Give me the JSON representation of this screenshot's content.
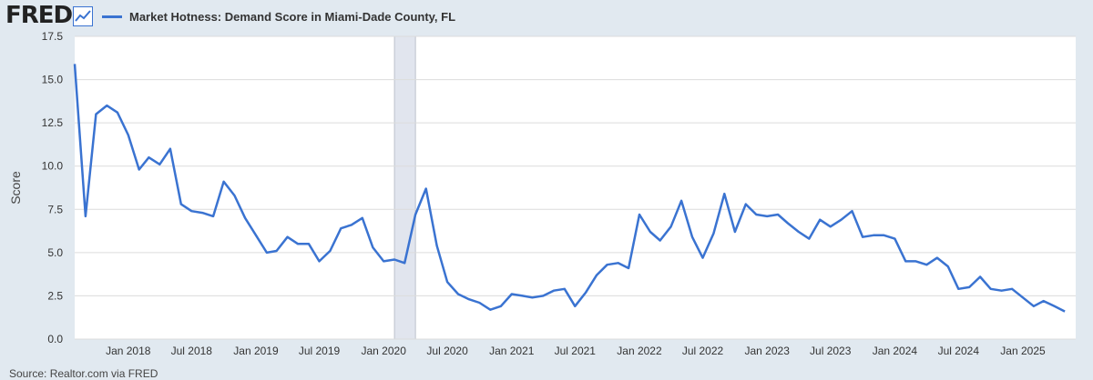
{
  "header": {
    "logo_text": "FRED",
    "logo_icon": "line-chart-icon"
  },
  "footer": {
    "source_text": "Source: Realtor.com via FRED"
  },
  "colors": {
    "series": "#3a73d1",
    "background": "#e1e9f0",
    "plot_background": "#ffffff",
    "recession": "#e1e5ee",
    "gridline": "#dcdcdc"
  },
  "chart_data": {
    "type": "line",
    "title": "",
    "xlabel": "",
    "ylabel": "Score",
    "ylim": [
      0,
      17.5
    ],
    "yticks": [
      "0.0",
      "2.5",
      "5.0",
      "7.5",
      "10.0",
      "12.5",
      "15.0",
      "17.5"
    ],
    "xlim": [
      "2017-08-01",
      "2025-06-01"
    ],
    "xticks": [
      {
        "date": "2018-01-01",
        "label": "Jan 2018"
      },
      {
        "date": "2018-07-01",
        "label": "Jul 2018"
      },
      {
        "date": "2019-01-01",
        "label": "Jan 2019"
      },
      {
        "date": "2019-07-01",
        "label": "Jul 2019"
      },
      {
        "date": "2020-01-01",
        "label": "Jan 2020"
      },
      {
        "date": "2020-07-01",
        "label": "Jul 2020"
      },
      {
        "date": "2021-01-01",
        "label": "Jan 2021"
      },
      {
        "date": "2021-07-01",
        "label": "Jul 2021"
      },
      {
        "date": "2022-01-01",
        "label": "Jan 2022"
      },
      {
        "date": "2022-07-01",
        "label": "Jul 2022"
      },
      {
        "date": "2023-01-01",
        "label": "Jan 2023"
      },
      {
        "date": "2023-07-01",
        "label": "Jul 2023"
      },
      {
        "date": "2024-01-01",
        "label": "Jan 2024"
      },
      {
        "date": "2024-07-01",
        "label": "Jul 2024"
      },
      {
        "date": "2025-01-01",
        "label": "Jan 2025"
      }
    ],
    "grid": true,
    "legend": "top-left",
    "recessions": [
      {
        "start": "2020-02-01",
        "end": "2020-04-01"
      }
    ],
    "series": [
      {
        "name": "Market Hotness: Demand Score in Miami-Dade County, FL",
        "points": [
          [
            "2017-08-01",
            15.9
          ],
          [
            "2017-09-01",
            7.1
          ],
          [
            "2017-10-01",
            13.0
          ],
          [
            "2017-11-01",
            13.5
          ],
          [
            "2017-12-01",
            13.1
          ],
          [
            "2018-01-01",
            11.8
          ],
          [
            "2018-02-01",
            9.8
          ],
          [
            "2018-03-01",
            10.5
          ],
          [
            "2018-04-01",
            10.1
          ],
          [
            "2018-05-01",
            11.0
          ],
          [
            "2018-06-01",
            7.8
          ],
          [
            "2018-07-01",
            7.4
          ],
          [
            "2018-08-01",
            7.3
          ],
          [
            "2018-09-01",
            7.1
          ],
          [
            "2018-10-01",
            9.1
          ],
          [
            "2018-11-01",
            8.3
          ],
          [
            "2018-12-01",
            7.0
          ],
          [
            "2019-01-01",
            6.0
          ],
          [
            "2019-02-01",
            5.0
          ],
          [
            "2019-03-01",
            5.1
          ],
          [
            "2019-04-01",
            5.9
          ],
          [
            "2019-05-01",
            5.5
          ],
          [
            "2019-06-01",
            5.5
          ],
          [
            "2019-07-01",
            4.5
          ],
          [
            "2019-08-01",
            5.1
          ],
          [
            "2019-09-01",
            6.4
          ],
          [
            "2019-10-01",
            6.6
          ],
          [
            "2019-11-01",
            7.0
          ],
          [
            "2019-12-01",
            5.3
          ],
          [
            "2020-01-01",
            4.5
          ],
          [
            "2020-02-01",
            4.6
          ],
          [
            "2020-03-01",
            4.4
          ],
          [
            "2020-04-01",
            7.2
          ],
          [
            "2020-05-01",
            8.7
          ],
          [
            "2020-06-01",
            5.4
          ],
          [
            "2020-07-01",
            3.3
          ],
          [
            "2020-08-01",
            2.6
          ],
          [
            "2020-09-01",
            2.3
          ],
          [
            "2020-10-01",
            2.1
          ],
          [
            "2020-11-01",
            1.7
          ],
          [
            "2020-12-01",
            1.9
          ],
          [
            "2021-01-01",
            2.6
          ],
          [
            "2021-02-01",
            2.5
          ],
          [
            "2021-03-01",
            2.4
          ],
          [
            "2021-04-01",
            2.5
          ],
          [
            "2021-05-01",
            2.8
          ],
          [
            "2021-06-01",
            2.9
          ],
          [
            "2021-07-01",
            1.9
          ],
          [
            "2021-08-01",
            2.7
          ],
          [
            "2021-09-01",
            3.7
          ],
          [
            "2021-10-01",
            4.3
          ],
          [
            "2021-11-01",
            4.4
          ],
          [
            "2021-12-01",
            4.1
          ],
          [
            "2022-01-01",
            7.2
          ],
          [
            "2022-02-01",
            6.2
          ],
          [
            "2022-03-01",
            5.7
          ],
          [
            "2022-04-01",
            6.5
          ],
          [
            "2022-05-01",
            8.0
          ],
          [
            "2022-06-01",
            5.9
          ],
          [
            "2022-07-01",
            4.7
          ],
          [
            "2022-08-01",
            6.1
          ],
          [
            "2022-09-01",
            8.4
          ],
          [
            "2022-10-01",
            6.2
          ],
          [
            "2022-11-01",
            7.8
          ],
          [
            "2022-12-01",
            7.2
          ],
          [
            "2023-01-01",
            7.1
          ],
          [
            "2023-02-01",
            7.2
          ],
          [
            "2023-03-01",
            6.7
          ],
          [
            "2023-04-01",
            6.2
          ],
          [
            "2023-05-01",
            5.8
          ],
          [
            "2023-06-01",
            6.9
          ],
          [
            "2023-07-01",
            6.5
          ],
          [
            "2023-08-01",
            6.9
          ],
          [
            "2023-09-01",
            7.4
          ],
          [
            "2023-10-01",
            5.9
          ],
          [
            "2023-11-01",
            6.0
          ],
          [
            "2023-12-01",
            6.0
          ],
          [
            "2024-01-01",
            5.8
          ],
          [
            "2024-02-01",
            4.5
          ],
          [
            "2024-03-01",
            4.5
          ],
          [
            "2024-04-01",
            4.3
          ],
          [
            "2024-05-01",
            4.7
          ],
          [
            "2024-06-01",
            4.2
          ],
          [
            "2024-07-01",
            2.9
          ],
          [
            "2024-08-01",
            3.0
          ],
          [
            "2024-09-01",
            3.6
          ],
          [
            "2024-10-01",
            2.9
          ],
          [
            "2024-11-01",
            2.8
          ],
          [
            "2024-12-01",
            2.9
          ],
          [
            "2025-01-01",
            2.4
          ],
          [
            "2025-02-01",
            1.9
          ],
          [
            "2025-03-01",
            2.2
          ],
          [
            "2025-04-01",
            1.9
          ],
          [
            "2025-05-01",
            1.6
          ]
        ]
      }
    ]
  }
}
